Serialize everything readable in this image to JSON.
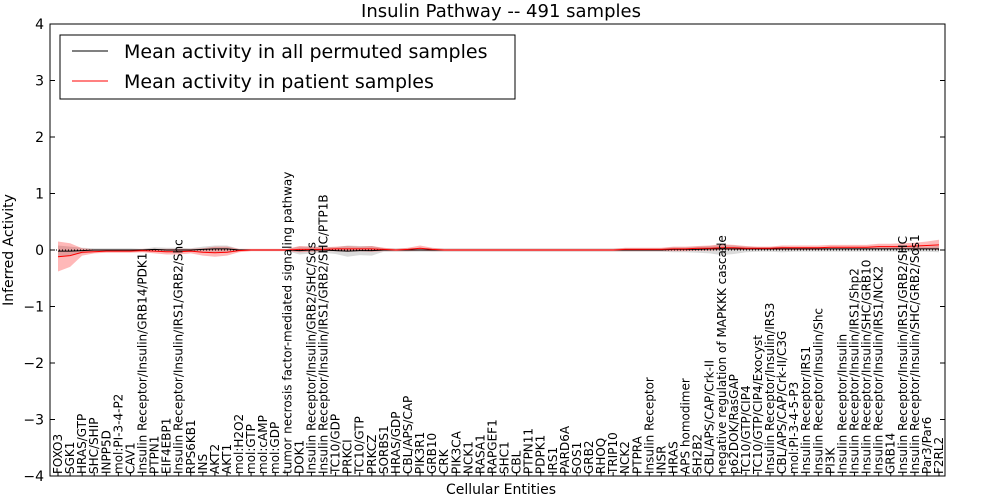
{
  "chart_data": {
    "type": "line",
    "title": "Insulin Pathway -- 491 samples",
    "xlabel": "Cellular Entities",
    "ylabel": "Inferred Activity",
    "ylim": [
      -4,
      4
    ],
    "yticks": [
      -4,
      -3,
      -2,
      -1,
      0,
      1,
      2,
      3,
      4
    ],
    "categories": [
      "FOXO3",
      "SGK1",
      "HRAS/GTP",
      "SHC/SHIP",
      "INPP5D",
      "mol:PI-3-4-P2",
      "CAV1",
      "Insulin Receptor/Insulin/GRB14/PDK1",
      "PTPN1",
      "EIF4EBP1",
      "Insulin Receptor/Insulin/IRS1/GRB2/Shc",
      "RPS6KB1",
      "INS",
      "AKT2",
      "AKT1",
      "mol:H2O2",
      "mol:GTP",
      "mol:cAMP",
      "mol:GDP",
      "tumor necrosis factor-mediated signaling pathway",
      "DOK1",
      "Insulin Receptor/Insulin/GRB2/SHC/Sos",
      "Insulin Receptor/Insulin/IRS1/GRB2/SHC/PTP1B",
      "TC10/GDP",
      "PRKCI",
      "TC10/GTP",
      "PRKCZ",
      "SORBS1",
      "HRAS/GDP",
      "CBL/APS/CAP",
      "PIK3R1",
      "GRB10",
      "CRK",
      "PIK3CA",
      "NCK1",
      "RASA1",
      "RAPGEF1",
      "SHC1",
      "CBL",
      "PTPN11",
      "PDPK1",
      "IRS1",
      "PARD6A",
      "SOS1",
      "GRB2",
      "RHOQ",
      "TRIP10",
      "NCK2",
      "PTPRA",
      "Insulin Receptor",
      "INSR",
      "HRAS",
      "APS homodimer",
      "SH2B2",
      "CBL/APS/CAP/Crk-II",
      "negative regulation of MAPKKK cascade",
      "p62DOK/RasGAP",
      "TC10/GTP/CIP4",
      "TC10/GTP/CIP4/Exocyst",
      "Insulin Receptor/Insulin/IRS3",
      "CBL/APS/CAP/Crk-II/C3G",
      "mol:PI-3-4-5-P3",
      "Insulin Receptor/IRS1",
      "Insulin Receptor/Insulin/Shc",
      "PI3K",
      "Insulin Receptor/Insulin",
      "Insulin Receptor/Insulin/IRS1/Shp2",
      "Insulin Receptor/Insulin/SHC/GRB10",
      "Insulin Receptor/Insulin/IRS1/NCK2",
      "GRB14",
      "Insulin Receptor/Insulin/IRS1/GRB2/SHC",
      "Insulin Receptor/Insulin/SHC/GRB2/Sos1",
      "Par3/Par6",
      "F2RL2"
    ],
    "series": [
      {
        "name": "Mean activity in all permuted samples",
        "color": "#000000",
        "values": [
          -0.02,
          -0.02,
          -0.01,
          0.0,
          0.0,
          0.0,
          0.0,
          0.0,
          0.01,
          0.0,
          0.0,
          0.0,
          0.01,
          0.02,
          0.02,
          0.0,
          0.0,
          0.0,
          0.0,
          0.0,
          -0.01,
          0.0,
          0.0,
          -0.01,
          -0.02,
          -0.01,
          -0.01,
          0.0,
          0.0,
          0.0,
          0.0,
          0.0,
          0.0,
          0.0,
          0.0,
          0.0,
          0.0,
          0.0,
          0.0,
          0.0,
          0.0,
          0.0,
          0.0,
          0.0,
          0.0,
          0.0,
          0.0,
          0.0,
          0.0,
          0.0,
          0.0,
          0.01,
          0.01,
          0.01,
          0.02,
          0.02,
          0.02,
          0.02,
          0.02,
          0.02,
          0.02,
          0.02,
          0.02,
          0.02,
          0.02,
          0.02,
          0.02,
          0.02,
          0.02,
          0.02,
          0.02,
          0.02,
          0.02,
          0.02
        ],
        "band_low": [
          -0.12,
          -0.1,
          -0.06,
          -0.03,
          -0.03,
          -0.03,
          -0.03,
          -0.02,
          -0.03,
          -0.04,
          -0.04,
          -0.03,
          -0.04,
          -0.05,
          -0.05,
          -0.02,
          -0.02,
          -0.02,
          -0.02,
          -0.02,
          -0.08,
          -0.06,
          -0.05,
          -0.07,
          -0.12,
          -0.09,
          -0.1,
          -0.03,
          -0.03,
          -0.03,
          -0.03,
          -0.03,
          -0.03,
          -0.03,
          -0.03,
          -0.03,
          -0.03,
          -0.03,
          -0.03,
          -0.03,
          -0.03,
          -0.03,
          -0.03,
          -0.03,
          -0.03,
          -0.03,
          -0.03,
          -0.03,
          -0.03,
          -0.03,
          -0.03,
          -0.04,
          -0.04,
          -0.05,
          -0.06,
          -0.09,
          -0.07,
          -0.04,
          -0.03,
          -0.03,
          -0.04,
          -0.03,
          -0.03,
          -0.03,
          -0.03,
          -0.03,
          -0.03,
          -0.03,
          -0.03,
          -0.03,
          -0.03,
          -0.03,
          -0.03,
          -0.04
        ],
        "band_high": [
          0.08,
          0.06,
          0.04,
          0.03,
          0.03,
          0.03,
          0.03,
          0.02,
          0.05,
          0.04,
          0.04,
          0.03,
          0.06,
          0.08,
          0.08,
          0.02,
          0.02,
          0.02,
          0.02,
          0.02,
          0.06,
          0.06,
          0.05,
          0.05,
          0.08,
          0.07,
          0.07,
          0.03,
          0.03,
          0.03,
          0.03,
          0.03,
          0.03,
          0.03,
          0.03,
          0.03,
          0.03,
          0.03,
          0.03,
          0.03,
          0.03,
          0.03,
          0.03,
          0.03,
          0.03,
          0.03,
          0.03,
          0.03,
          0.03,
          0.03,
          0.03,
          0.05,
          0.05,
          0.06,
          0.07,
          0.09,
          0.08,
          0.06,
          0.05,
          0.05,
          0.06,
          0.05,
          0.05,
          0.05,
          0.05,
          0.05,
          0.05,
          0.05,
          0.05,
          0.05,
          0.06,
          0.06,
          0.06,
          0.07
        ]
      },
      {
        "name": "Mean activity in patient samples",
        "color": "#ff0000",
        "values": [
          -0.12,
          -0.1,
          -0.04,
          -0.03,
          -0.02,
          -0.02,
          -0.02,
          -0.01,
          -0.02,
          -0.03,
          -0.03,
          -0.02,
          -0.04,
          -0.05,
          -0.04,
          -0.01,
          0.0,
          0.0,
          0.0,
          0.0,
          0.01,
          0.01,
          0.01,
          0.02,
          0.02,
          0.02,
          0.02,
          0.01,
          0.0,
          0.01,
          0.03,
          0.01,
          0.0,
          0.0,
          0.0,
          0.0,
          0.0,
          0.0,
          0.0,
          0.0,
          0.0,
          0.0,
          0.0,
          0.0,
          0.0,
          0.0,
          0.0,
          0.01,
          0.01,
          0.01,
          0.01,
          0.02,
          0.02,
          0.03,
          0.03,
          0.04,
          0.04,
          0.03,
          0.03,
          0.03,
          0.04,
          0.04,
          0.04,
          0.04,
          0.05,
          0.05,
          0.05,
          0.05,
          0.06,
          0.06,
          0.06,
          0.07,
          0.08,
          0.09
        ],
        "band_low": [
          -0.38,
          -0.3,
          -0.1,
          -0.06,
          -0.05,
          -0.05,
          -0.05,
          -0.04,
          -0.06,
          -0.08,
          -0.08,
          -0.06,
          -0.1,
          -0.12,
          -0.1,
          -0.04,
          -0.02,
          -0.02,
          -0.02,
          -0.02,
          -0.04,
          -0.03,
          -0.02,
          -0.02,
          -0.03,
          -0.02,
          -0.03,
          -0.02,
          -0.02,
          -0.02,
          -0.01,
          -0.02,
          -0.02,
          -0.02,
          -0.02,
          -0.02,
          -0.02,
          -0.02,
          -0.02,
          -0.02,
          -0.02,
          -0.02,
          -0.02,
          -0.02,
          -0.02,
          -0.02,
          -0.02,
          -0.02,
          -0.02,
          -0.02,
          -0.02,
          -0.02,
          -0.02,
          -0.01,
          -0.01,
          0.0,
          0.0,
          0.0,
          0.0,
          0.0,
          0.0,
          0.0,
          0.0,
          0.0,
          0.01,
          0.01,
          0.01,
          0.01,
          0.02,
          0.01,
          0.01,
          0.01,
          0.01,
          0.0
        ],
        "band_high": [
          0.15,
          0.12,
          0.03,
          0.01,
          0.01,
          0.01,
          0.01,
          0.02,
          0.02,
          0.02,
          0.02,
          0.02,
          0.03,
          0.06,
          0.06,
          0.02,
          0.02,
          0.02,
          0.02,
          0.02,
          0.07,
          0.06,
          0.05,
          0.06,
          0.07,
          0.06,
          0.07,
          0.04,
          0.02,
          0.04,
          0.08,
          0.04,
          0.02,
          0.02,
          0.02,
          0.02,
          0.02,
          0.02,
          0.02,
          0.02,
          0.02,
          0.02,
          0.02,
          0.02,
          0.02,
          0.02,
          0.02,
          0.04,
          0.04,
          0.04,
          0.04,
          0.06,
          0.06,
          0.07,
          0.08,
          0.1,
          0.09,
          0.07,
          0.06,
          0.06,
          0.08,
          0.08,
          0.08,
          0.08,
          0.09,
          0.09,
          0.09,
          0.09,
          0.11,
          0.11,
          0.12,
          0.13,
          0.15,
          0.18
        ]
      }
    ],
    "legend_position": "top-left",
    "zero_line": "dotted"
  }
}
